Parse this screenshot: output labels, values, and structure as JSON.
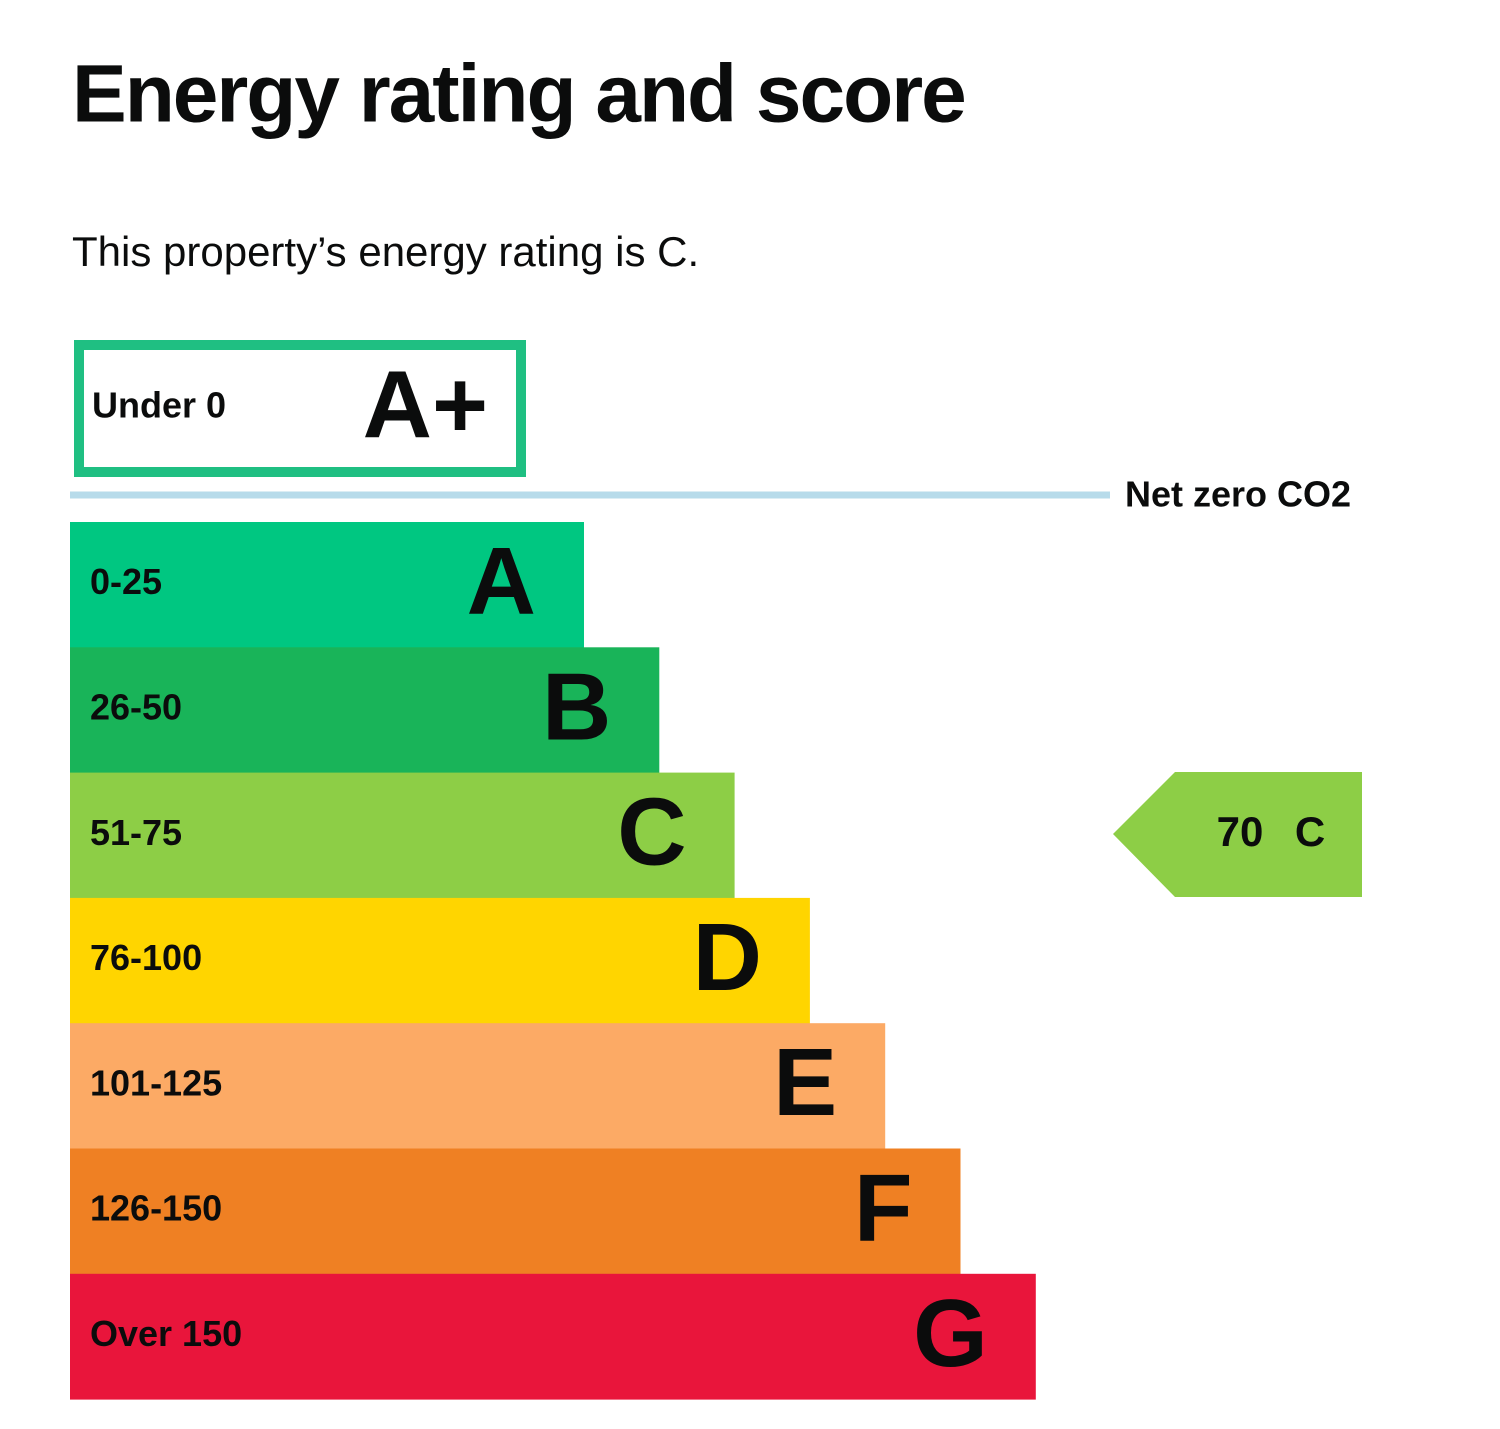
{
  "header": {
    "title": "Energy rating and score"
  },
  "summary": "This property’s energy rating is C.",
  "top_band": {
    "range": "Under 0",
    "letter": "A+",
    "color": "#1fbf82"
  },
  "net_zero_label": "Net zero CO2",
  "bands": [
    {
      "range": "0-25",
      "letter": "A",
      "color": "#00c781"
    },
    {
      "range": "26-50",
      "letter": "B",
      "color": "#19b459"
    },
    {
      "range": "51-75",
      "letter": "C",
      "color": "#8dce46"
    },
    {
      "range": "76-100",
      "letter": "D",
      "color": "#ffd500"
    },
    {
      "range": "101-125",
      "letter": "E",
      "color": "#fcaa65"
    },
    {
      "range": "126-150",
      "letter": "F",
      "color": "#ef8023"
    },
    {
      "range": "Over 150",
      "letter": "G",
      "color": "#e9153b"
    }
  ],
  "current": {
    "score": 70,
    "rating": "C"
  }
}
